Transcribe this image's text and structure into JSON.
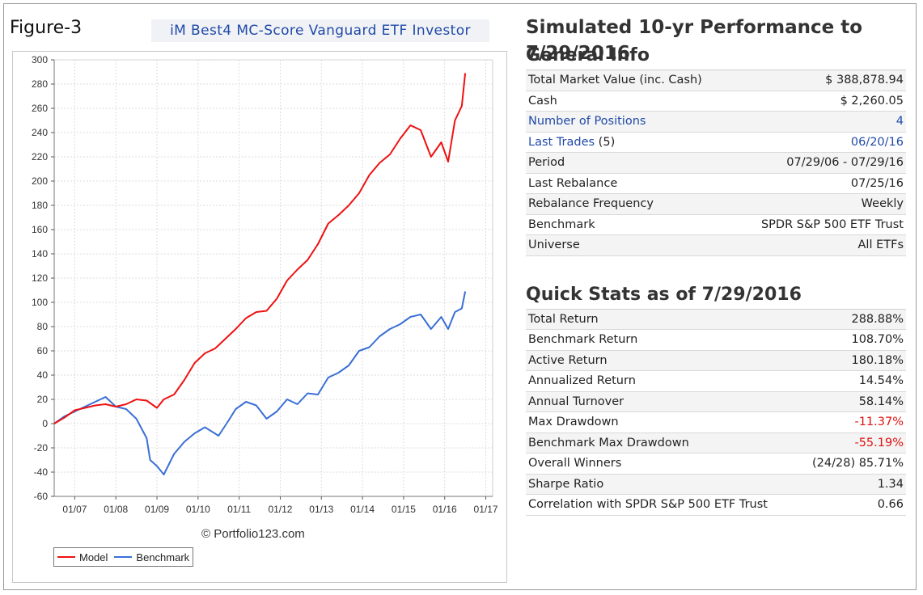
{
  "figure_label": "Figure-3",
  "figure_title": "iM Best4 MC-Score Vanguard ETF Investor",
  "watermark": "© Portfolio123.com",
  "chart_data": {
    "type": "line",
    "title": "",
    "xlabel": "",
    "ylabel": "",
    "ylim": [
      -60,
      300
    ],
    "yticks": [
      300,
      280,
      260,
      240,
      220,
      200,
      180,
      160,
      140,
      120,
      100,
      80,
      60,
      40,
      20,
      0,
      -20,
      -40,
      -60
    ],
    "xticks": [
      "01/07",
      "01/08",
      "01/09",
      "01/10",
      "01/11",
      "01/12",
      "01/13",
      "01/14",
      "01/15",
      "01/16",
      "01/17"
    ],
    "xlim": [
      "07/2006",
      "03/2017"
    ],
    "grid": true,
    "legend_position": "bottom-left",
    "series": [
      {
        "name": "Model",
        "color": "#ee1111",
        "points": [
          [
            "07/2006",
            0
          ],
          [
            "10/2006",
            5
          ],
          [
            "01/2007",
            11
          ],
          [
            "04/2007",
            13
          ],
          [
            "07/2007",
            15
          ],
          [
            "10/2007",
            16
          ],
          [
            "01/2008",
            14
          ],
          [
            "04/2008",
            16
          ],
          [
            "07/2008",
            20
          ],
          [
            "10/2008",
            19
          ],
          [
            "01/2009",
            13
          ],
          [
            "03/2009",
            20
          ],
          [
            "06/2009",
            24
          ],
          [
            "09/2009",
            36
          ],
          [
            "12/2009",
            50
          ],
          [
            "03/2010",
            58
          ],
          [
            "06/2010",
            62
          ],
          [
            "09/2010",
            70
          ],
          [
            "12/2010",
            78
          ],
          [
            "03/2011",
            87
          ],
          [
            "06/2011",
            92
          ],
          [
            "09/2011",
            93
          ],
          [
            "12/2011",
            103
          ],
          [
            "03/2012",
            118
          ],
          [
            "06/2012",
            127
          ],
          [
            "09/2012",
            135
          ],
          [
            "12/2012",
            148
          ],
          [
            "03/2013",
            165
          ],
          [
            "06/2013",
            172
          ],
          [
            "09/2013",
            180
          ],
          [
            "12/2013",
            190
          ],
          [
            "03/2014",
            205
          ],
          [
            "06/2014",
            215
          ],
          [
            "09/2014",
            222
          ],
          [
            "12/2014",
            235
          ],
          [
            "03/2015",
            246
          ],
          [
            "06/2015",
            242
          ],
          [
            "09/2015",
            220
          ],
          [
            "12/2015",
            232
          ],
          [
            "02/2016",
            216
          ],
          [
            "04/2016",
            250
          ],
          [
            "06/2016",
            262
          ],
          [
            "07/2016",
            289
          ]
        ]
      },
      {
        "name": "Benchmark",
        "color": "#3a6fd6",
        "points": [
          [
            "07/2006",
            0
          ],
          [
            "10/2006",
            6
          ],
          [
            "01/2007",
            10
          ],
          [
            "04/2007",
            14
          ],
          [
            "07/2007",
            18
          ],
          [
            "10/2007",
            22
          ],
          [
            "01/2008",
            14
          ],
          [
            "04/2008",
            12
          ],
          [
            "07/2008",
            4
          ],
          [
            "10/2008",
            -12
          ],
          [
            "11/2008",
            -30
          ],
          [
            "01/2009",
            -35
          ],
          [
            "03/2009",
            -42
          ],
          [
            "06/2009",
            -25
          ],
          [
            "09/2009",
            -15
          ],
          [
            "12/2009",
            -8
          ],
          [
            "03/2010",
            -3
          ],
          [
            "07/2010",
            -10
          ],
          [
            "10/2010",
            3
          ],
          [
            "12/2010",
            12
          ],
          [
            "03/2011",
            18
          ],
          [
            "06/2011",
            15
          ],
          [
            "09/2011",
            4
          ],
          [
            "12/2011",
            10
          ],
          [
            "03/2012",
            20
          ],
          [
            "06/2012",
            16
          ],
          [
            "09/2012",
            25
          ],
          [
            "12/2012",
            24
          ],
          [
            "03/2013",
            38
          ],
          [
            "06/2013",
            42
          ],
          [
            "09/2013",
            48
          ],
          [
            "12/2013",
            60
          ],
          [
            "03/2014",
            63
          ],
          [
            "06/2014",
            72
          ],
          [
            "09/2014",
            78
          ],
          [
            "12/2014",
            82
          ],
          [
            "03/2015",
            88
          ],
          [
            "06/2015",
            90
          ],
          [
            "09/2015",
            78
          ],
          [
            "12/2015",
            88
          ],
          [
            "02/2016",
            78
          ],
          [
            "04/2016",
            92
          ],
          [
            "06/2016",
            95
          ],
          [
            "07/2016",
            109
          ]
        ]
      }
    ]
  },
  "right": {
    "heading": "Simulated 10-yr Performance to 7/29/2016",
    "general_info": {
      "title": "General Info",
      "rows": [
        {
          "label": "Total Market Value (inc. Cash)",
          "value": "$ 388,878.94"
        },
        {
          "label": "Cash",
          "value": "$ 2,260.05"
        },
        {
          "label": "Number of Positions",
          "value": "4"
        },
        {
          "label": "Last Trades",
          "label_suffix": " (5)",
          "value": "06/20/16"
        },
        {
          "label": "Period",
          "value": "07/29/06 - 07/29/16"
        },
        {
          "label": "Last Rebalance",
          "value": "07/25/16"
        },
        {
          "label": "Rebalance Frequency",
          "value": "Weekly"
        },
        {
          "label": "Benchmark",
          "value": "SPDR S&P 500 ETF Trust"
        },
        {
          "label": "Universe",
          "value": "All ETFs"
        }
      ]
    },
    "quick_stats": {
      "title": "Quick Stats as of 7/29/2016",
      "rows": [
        {
          "label": "Total Return",
          "value": "288.88%"
        },
        {
          "label": "Benchmark Return",
          "value": "108.70%"
        },
        {
          "label": "Active Return",
          "value": "180.18%"
        },
        {
          "label": "Annualized Return",
          "value": "14.54%"
        },
        {
          "label": "Annual Turnover",
          "value": "58.14%"
        },
        {
          "label": "Max Drawdown",
          "value": "-11.37%"
        },
        {
          "label": "Benchmark Max Drawdown",
          "value": "-55.19%"
        },
        {
          "label": "Overall Winners",
          "value": "(24/28) 85.71%"
        },
        {
          "label": "Sharpe Ratio",
          "value": "1.34"
        },
        {
          "label": "Correlation with SPDR S&P 500 ETF Trust",
          "value": "0.66"
        }
      ]
    }
  }
}
